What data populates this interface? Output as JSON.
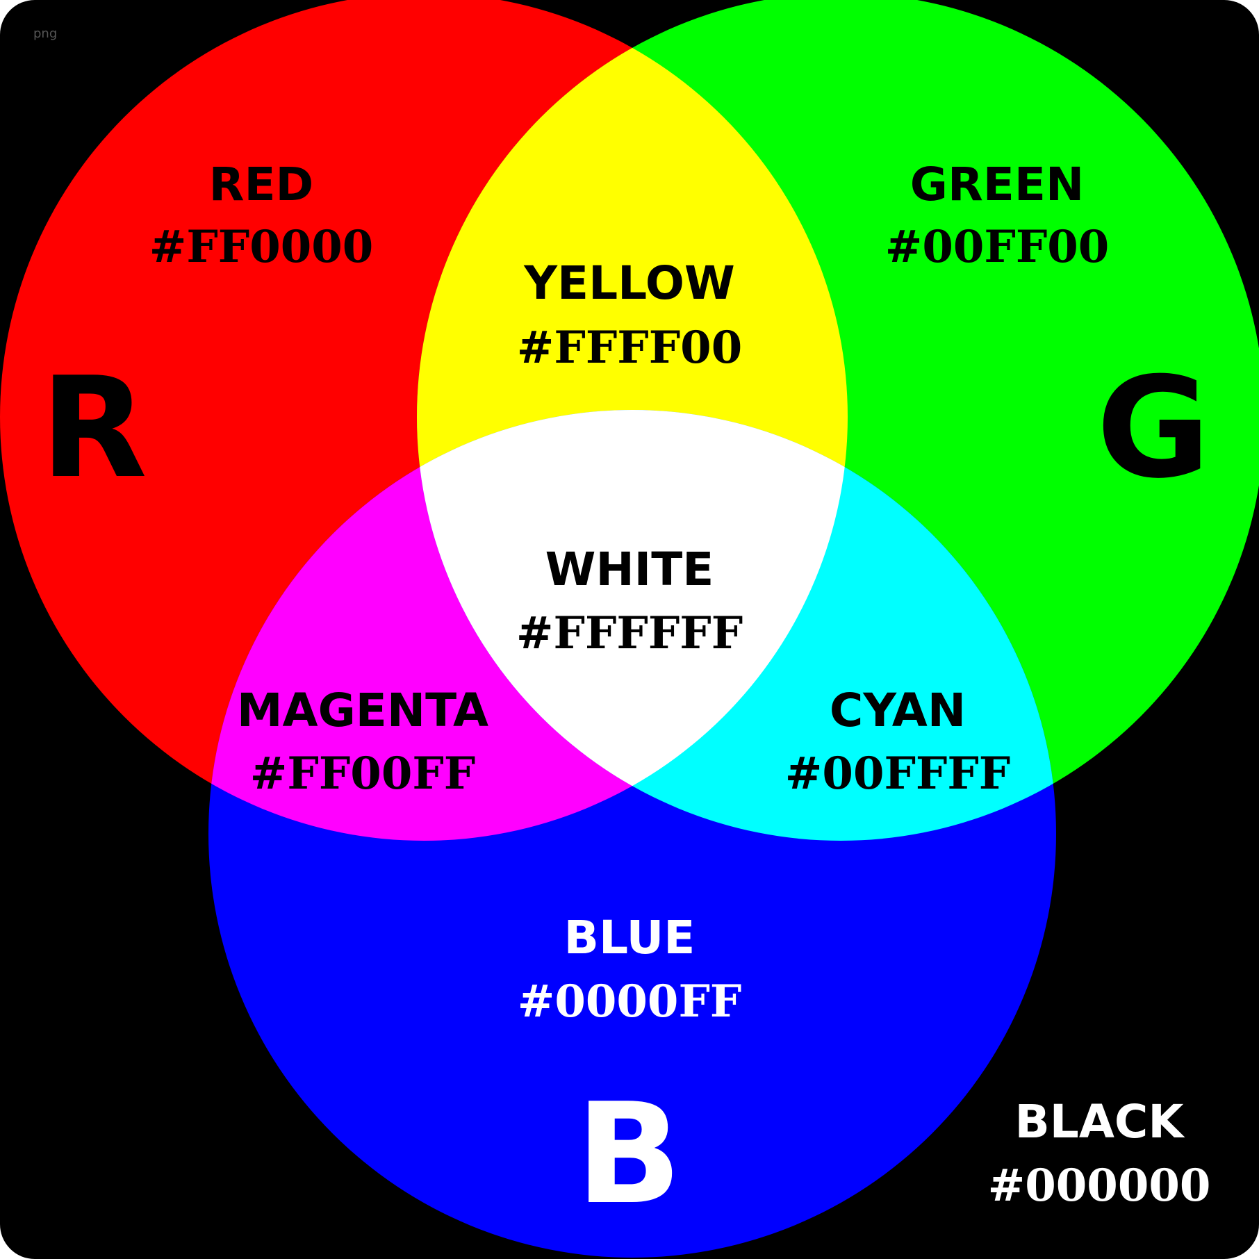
{
  "file_format": "png",
  "diagram_data": {
    "type": "venn",
    "primaries": [
      {
        "id": "R",
        "letter": "R",
        "name": "RED",
        "hex": "#FF0000",
        "color": "#ff0000"
      },
      {
        "id": "G",
        "letter": "G",
        "name": "GREEN",
        "hex": "#00FF00",
        "color": "#00ff00"
      },
      {
        "id": "B",
        "letter": "B",
        "name": "BLUE",
        "hex": "#0000FF",
        "color": "#0000ff"
      }
    ],
    "mixes": {
      "RG": {
        "name": "YELLOW",
        "hex": "#FFFF00",
        "color": "#ffff00"
      },
      "RB": {
        "name": "MAGENTA",
        "hex": "#FF00FF",
        "color": "#ff00ff"
      },
      "GB": {
        "name": "CYAN",
        "hex": "#00FFFF",
        "color": "#00ffff"
      },
      "RGB": {
        "name": "WHITE",
        "hex": "#FFFFFF",
        "color": "#ffffff"
      }
    },
    "background": {
      "name": "BLACK",
      "hex": "#000000",
      "color": "#000000"
    }
  }
}
